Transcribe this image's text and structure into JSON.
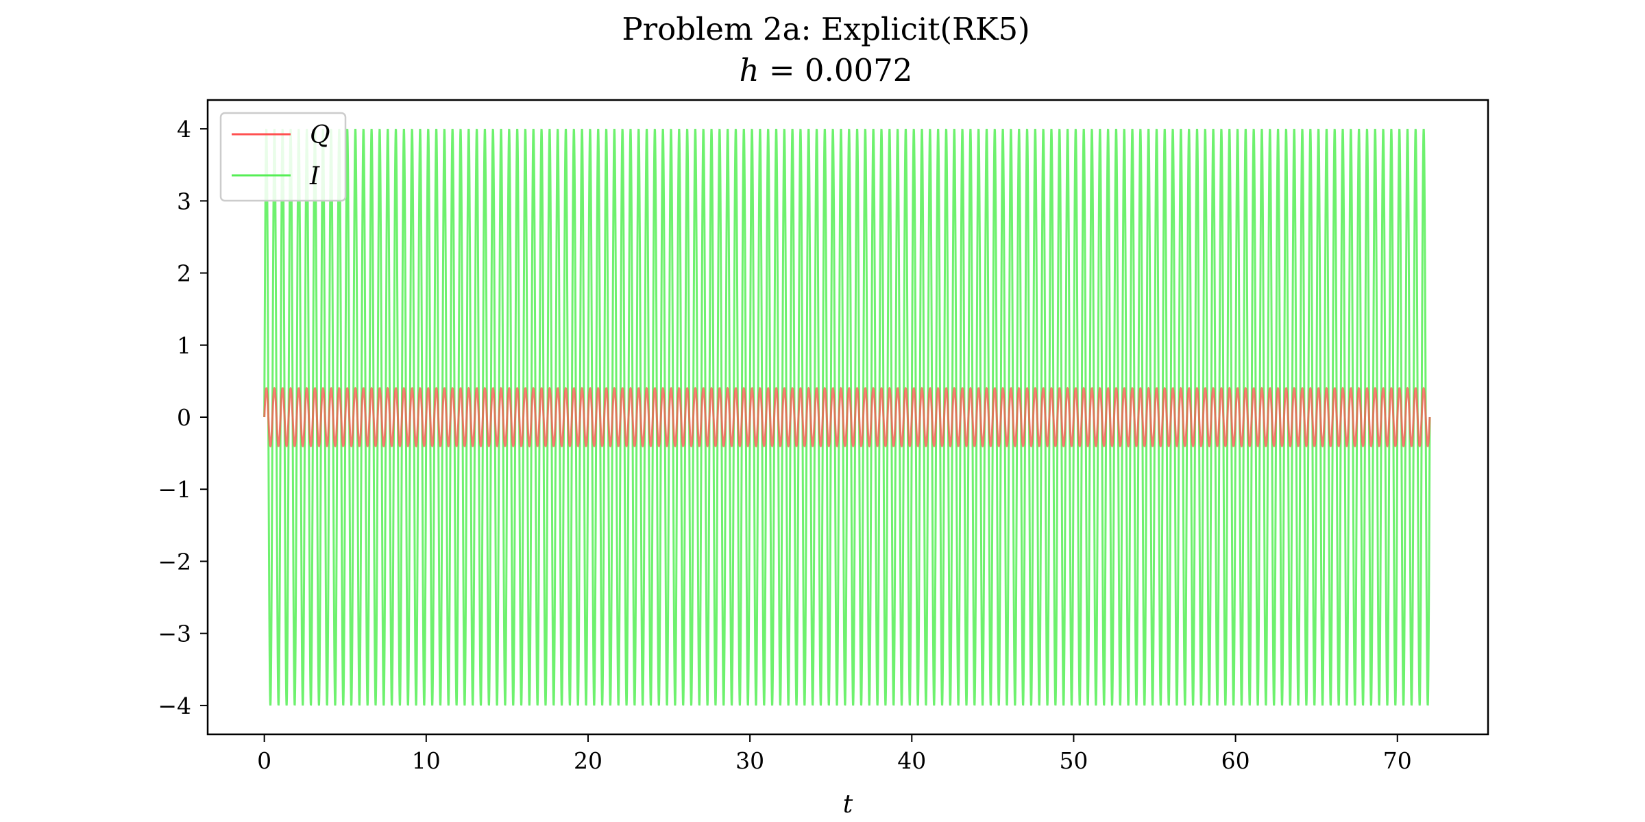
{
  "chart_data": {
    "type": "line",
    "title": "Problem 2a: Explicit(RK5)",
    "subtitle_lhs": "h",
    "subtitle_rhs": " = 0.0072",
    "xlabel": "t",
    "ylabel": "",
    "xlim": [
      -3.5,
      75.6
    ],
    "ylim": [
      -4.4,
      4.4
    ],
    "x_ticks": [
      0,
      10,
      20,
      30,
      40,
      50,
      60,
      70
    ],
    "y_ticks": [
      -4,
      -3,
      -2,
      -1,
      0,
      1,
      2,
      3,
      4
    ],
    "y_tick_labels": [
      "−4",
      "−3",
      "−2",
      "−1",
      "0",
      "1",
      "2",
      "3",
      "4"
    ],
    "grid": false,
    "legend_position": "upper-left",
    "series": [
      {
        "name": "Q",
        "color": "#ff5050",
        "description": "oscillation with amplitude about 0.4",
        "t_start": 0,
        "t_end": 72,
        "amplitude": 0.4,
        "period": 0.5
      },
      {
        "name": "I",
        "color": "#55ee55",
        "description": "oscillation with amplitude about 4",
        "t_start": 0,
        "t_end": 72,
        "amplitude": 4.0,
        "period": 0.5
      }
    ]
  }
}
